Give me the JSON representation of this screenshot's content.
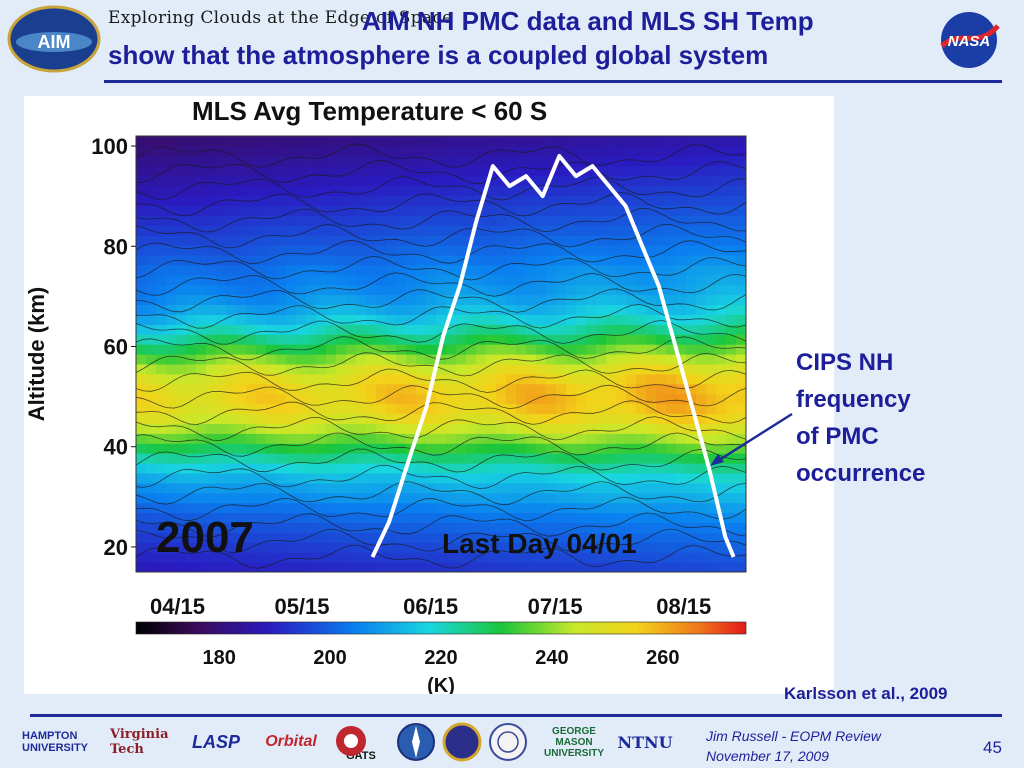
{
  "header": {
    "tagline": "Exploring Clouds at the Edge of Space",
    "title_line1": "AIM NH PMC data and MLS SH Temp",
    "title_line2": "show that the atmosphere is a coupled global system",
    "aim_logo_text": "AIM",
    "nasa_logo_text": "NASA"
  },
  "chart_data": {
    "type": "heatmap",
    "title": "MLS Avg Temperature < 60 S",
    "ylabel": "Altitude (km)",
    "xlabel": "",
    "x_ticks": [
      "04/15",
      "05/15",
      "06/15",
      "07/15",
      "08/15"
    ],
    "y_ticks": [
      20,
      40,
      60,
      80,
      100
    ],
    "ylim": [
      15,
      102
    ],
    "year_label": "2007",
    "inner_label": "Last Day 04/01",
    "colorbar": {
      "ticks": [
        180,
        200,
        220,
        240,
        260
      ],
      "unit": "(K)",
      "range": [
        165,
        275
      ]
    },
    "overlay_series": {
      "description_visible": false,
      "color": "#ffffff",
      "points": [
        [
          "06/01",
          18
        ],
        [
          "06/05",
          25
        ],
        [
          "06/10",
          38
        ],
        [
          "06/14",
          48
        ],
        [
          "06/18",
          62
        ],
        [
          "06/22",
          72
        ],
        [
          "06/26",
          85
        ],
        [
          "06/30",
          96
        ],
        [
          "07/04",
          92
        ],
        [
          "07/08",
          94
        ],
        [
          "07/12",
          90
        ],
        [
          "07/16",
          98
        ],
        [
          "07/20",
          94
        ],
        [
          "07/24",
          96
        ],
        [
          "07/28",
          92
        ],
        [
          "08/01",
          88
        ],
        [
          "08/05",
          80
        ],
        [
          "08/09",
          72
        ],
        [
          "08/13",
          60
        ],
        [
          "08/17",
          48
        ],
        [
          "08/21",
          36
        ],
        [
          "08/25",
          22
        ],
        [
          "08/27",
          18
        ]
      ]
    }
  },
  "annotation": {
    "text": "CIPS NH\nfrequency\nof PMC\noccurrence",
    "arrow_color": "#1d2b9a"
  },
  "citation": "Karlsson et al., 2009",
  "footer": {
    "logos": [
      "HAMPTON UNIVERSITY",
      "Virginia Tech",
      "LASP",
      "Orbital",
      "GATS",
      "NTNU",
      "GEORGE MASON UNIVERSITY"
    ],
    "presenter": "Jim Russell  -  EOPM Review",
    "date": "November 17, 2009",
    "page_number": "45"
  },
  "colors": {
    "title": "#1d1f9a",
    "rule": "#1d2b9a",
    "background": "#e2ecf8"
  }
}
